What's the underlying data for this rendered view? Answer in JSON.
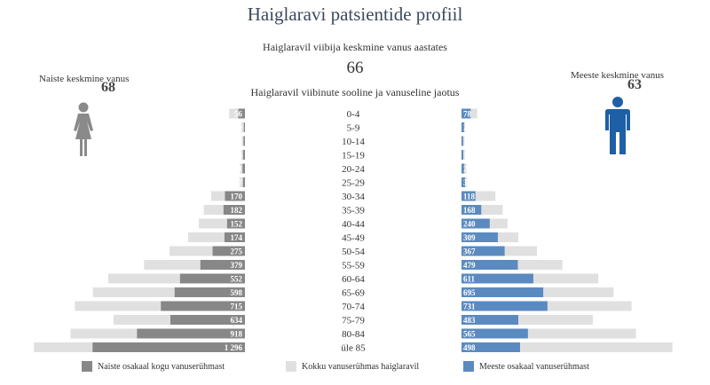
{
  "title": "Haiglaravi patsientide profiil",
  "average": {
    "label": "Haiglaravil viibija keskmine vanus aastates",
    "value": "66"
  },
  "women": {
    "label": "Naiste keskmine vanus",
    "value": "68",
    "icon": "woman-icon"
  },
  "men": {
    "label": "Meeste keskmine vanus",
    "value": "63",
    "icon": "man-icon"
  },
  "distribution_title": "Haiglaravil viibinute sooline ja vanuseline jaotus",
  "colors": {
    "women": "#878787",
    "total": "#e0e0e0",
    "men": "#5b8ac0",
    "man_icon": "#1f5fa6"
  },
  "legend": {
    "women": "Naiste osakaal kogu vanuserühmast",
    "total": "Kokku vanuserühmas haiglaravil",
    "men": "Meeste osakaal vanuserühmast"
  },
  "chart_data": {
    "type": "bar",
    "categories": [
      "0-4",
      "5-9",
      "10-14",
      "15-19",
      "20-24",
      "25-29",
      "30-34",
      "35-39",
      "40-44",
      "45-49",
      "50-54",
      "55-59",
      "60-64",
      "65-69",
      "70-74",
      "75-79",
      "80-84",
      "üle 85"
    ],
    "series": [
      {
        "name": "Naiste osakaal kogu vanuserühmast",
        "values": [
          56,
          9,
          12,
          16,
          21,
          17,
          170,
          182,
          152,
          174,
          275,
          379,
          552,
          598,
          715,
          634,
          918,
          1296
        ],
        "labels": [
          "56",
          "9",
          "12",
          "16",
          "21",
          "17",
          "170",
          "182",
          "152",
          "174",
          "275",
          "379",
          "552",
          "598",
          "715",
          "634",
          "918",
          "1 296"
        ]
      },
      {
        "name": "Meeste osakaal vanuserühmast",
        "values": [
          78,
          22,
          14,
          15,
          24,
          30,
          118,
          168,
          240,
          309,
          367,
          479,
          611,
          695,
          731,
          483,
          565,
          498
        ],
        "labels": [
          "78",
          "22",
          "14",
          "15",
          "24",
          "30",
          "118",
          "168",
          "240",
          "309",
          "367",
          "479",
          "611",
          "695",
          "731",
          "483",
          "565",
          "498"
        ]
      },
      {
        "name": "Kokku vanuserühmas haiglaravil",
        "values": [
          134,
          31,
          26,
          31,
          45,
          47,
          288,
          350,
          392,
          483,
          642,
          858,
          1163,
          1293,
          1446,
          1117,
          1483,
          1794
        ]
      }
    ]
  }
}
